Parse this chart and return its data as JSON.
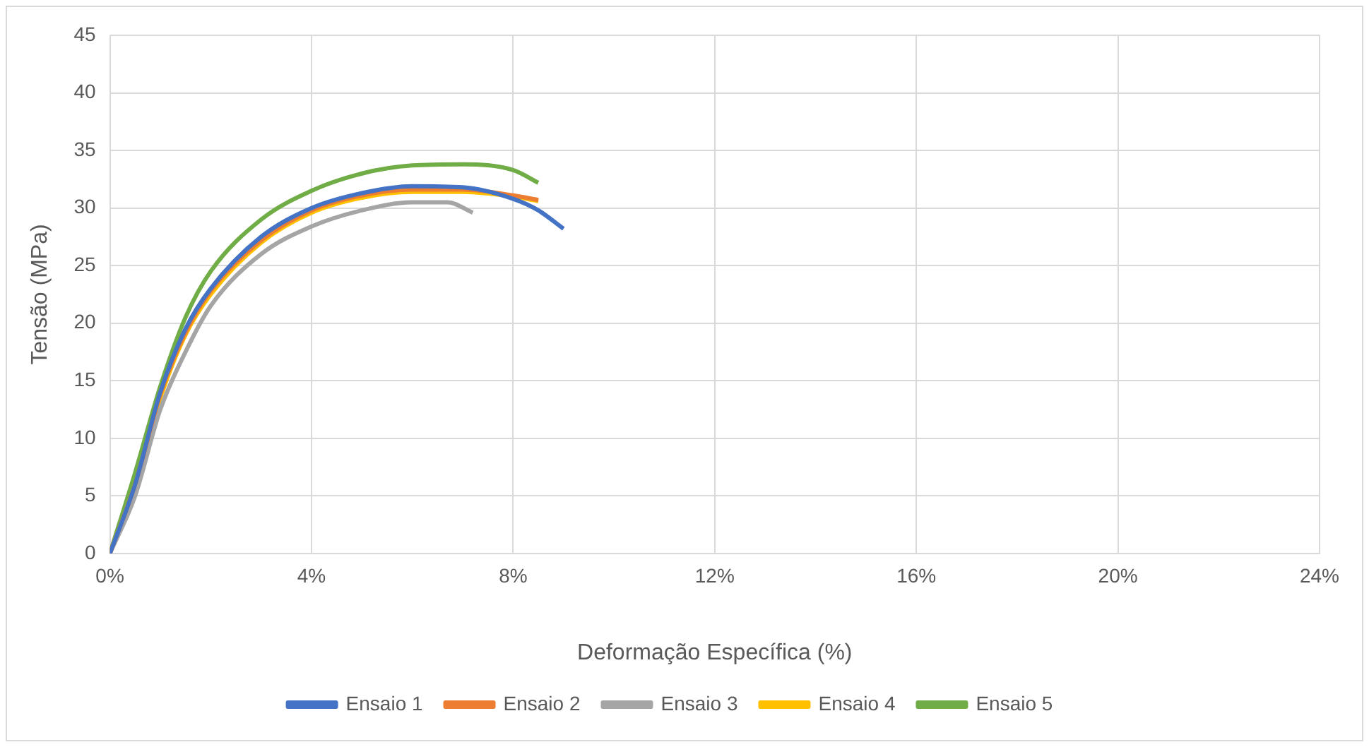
{
  "chart_data": {
    "type": "line",
    "xlabel": "Deformação Específica (%)",
    "ylabel": "Tensão (MPa)",
    "xlim": [
      0,
      24
    ],
    "xticks": [
      {
        "value": 0,
        "label": "0%"
      },
      {
        "value": 4,
        "label": "4%"
      },
      {
        "value": 8,
        "label": "8%"
      },
      {
        "value": 12,
        "label": "12%"
      },
      {
        "value": 16,
        "label": "16%"
      },
      {
        "value": 20,
        "label": "20%"
      },
      {
        "value": 24,
        "label": "24%"
      }
    ],
    "ylim": [
      0,
      45
    ],
    "yticks": [
      0,
      5,
      10,
      15,
      20,
      25,
      30,
      35,
      40,
      45
    ],
    "grid": true,
    "legend": "bottom",
    "marker": "none",
    "line_style": "solid",
    "series": [
      {
        "name": "Ensaio 1",
        "color": "#4472c4",
        "x": [
          0,
          0.5,
          1,
          1.5,
          2,
          3,
          4,
          5,
          6,
          7,
          8,
          8.5,
          9
        ],
        "values": [
          0,
          6,
          14,
          19.5,
          23,
          27.5,
          30,
          31.3,
          31.9,
          31.8,
          30.8,
          29.8,
          28.2
        ]
      },
      {
        "name": "Ensaio 2",
        "color": "#ed7d31",
        "x": [
          0,
          0.5,
          1,
          1.5,
          2,
          3,
          4,
          5,
          6,
          7,
          8,
          8.5
        ],
        "values": [
          0,
          6,
          13.8,
          19.2,
          22.8,
          27.2,
          29.8,
          31.1,
          31.6,
          31.6,
          31.1,
          30.7
        ]
      },
      {
        "name": "Ensaio 3",
        "color": "#a5a5a5",
        "x": [
          0,
          0.5,
          1,
          1.5,
          2,
          3,
          4,
          5,
          6,
          6.7,
          7.2
        ],
        "values": [
          0,
          5,
          12.5,
          17.5,
          21.5,
          26,
          28.4,
          29.8,
          30.5,
          30.5,
          29.6
        ]
      },
      {
        "name": "Ensaio 4",
        "color": "#ffc000",
        "x": [
          0,
          0.5,
          1,
          1.5,
          2,
          3,
          4,
          5,
          6,
          7,
          8,
          8.5
        ],
        "values": [
          0,
          6,
          13.5,
          19,
          22.5,
          27,
          29.6,
          30.9,
          31.4,
          31.4,
          31,
          30.6
        ]
      },
      {
        "name": "Ensaio 5",
        "color": "#70ad47",
        "x": [
          0,
          0.5,
          1,
          1.5,
          2,
          3,
          4,
          5,
          6,
          7,
          8,
          8.5
        ],
        "values": [
          0,
          7,
          14.5,
          20.5,
          24.5,
          29,
          31.5,
          33,
          33.7,
          33.8,
          33.3,
          32.2
        ]
      }
    ]
  }
}
